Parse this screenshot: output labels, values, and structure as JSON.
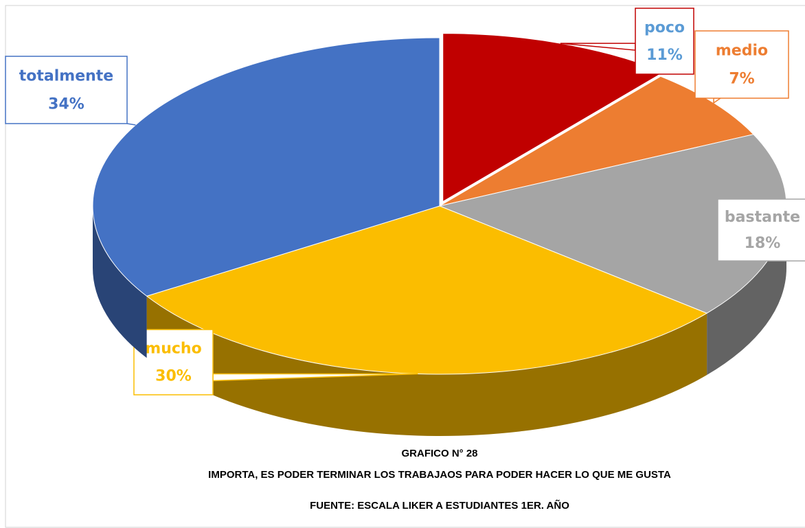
{
  "chart_data": {
    "type": "pie",
    "title": "GRAFICO N° 28",
    "subtitle": "IMPORTA, ES PODER TERMINAR LOS TRABAJAOS PARA PODER HACER LO QUE ME GUSTA",
    "source": "FUENTE: ESCALA LIKER A ESTUDIANTES 1ER. AÑO",
    "categories": [
      "poco",
      "medio",
      "bastante",
      "mucho",
      "totalmente"
    ],
    "values": [
      11,
      7,
      18,
      30,
      34
    ],
    "value_labels": [
      "11%",
      "7%",
      "18%",
      "30%",
      "34%"
    ],
    "colors": [
      "#c00000",
      "#ed7d31",
      "#a5a5a5",
      "#fbbd00",
      "#4472c4"
    ]
  }
}
